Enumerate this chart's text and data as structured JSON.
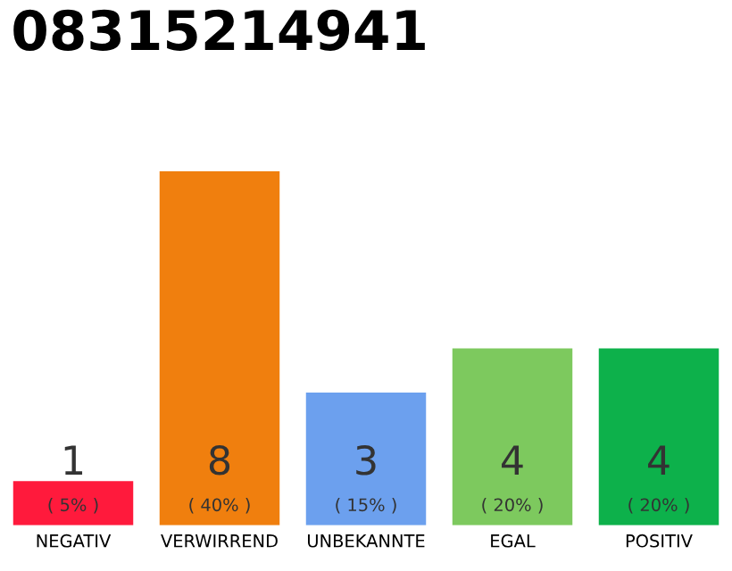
{
  "chart_data": {
    "type": "bar",
    "title": "08315214941",
    "categories": [
      "NEGATIV",
      "VERWIRREND",
      "UNBEKANNTE",
      "EGAL",
      "POSITIV"
    ],
    "values": [
      1,
      8,
      3,
      4,
      4
    ],
    "colors": [
      "#ff1a3c",
      "#f07f0e",
      "#6ca0ee",
      "#7dc95e",
      "#0db14b"
    ],
    "value_labels": [
      "1\n( 5% )",
      "8\n( 40% )",
      "3\n( 15% )",
      "4\n( 20% )",
      "4\n( 20% )"
    ],
    "grid": false,
    "legend": false
  }
}
